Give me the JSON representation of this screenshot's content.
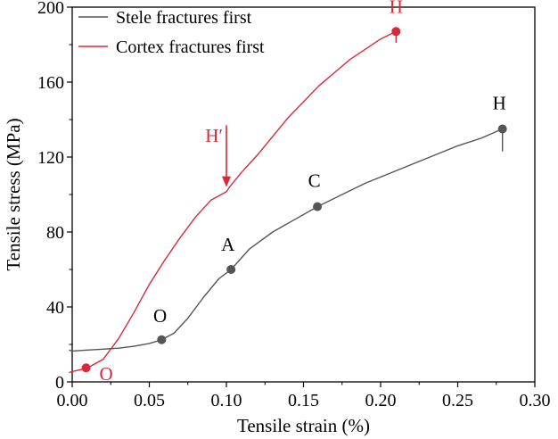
{
  "chart_data": {
    "type": "line",
    "xlabel": "Tensile strain (%)",
    "ylabel": "Tensile stress (MPa)",
    "xlim": [
      0.0,
      0.3
    ],
    "ylim": [
      0,
      200
    ],
    "xticks": [
      "0.00",
      "0.05",
      "0.10",
      "0.15",
      "0.20",
      "0.25",
      "0.30"
    ],
    "yticks": [
      "0",
      "40",
      "80",
      "120",
      "160",
      "200"
    ],
    "grid": false,
    "legend": "top-left",
    "series": [
      {
        "name": "Stele fractures first",
        "color": "#555555",
        "x": [
          -0.002,
          0.0,
          0.01,
          0.02,
          0.03,
          0.04,
          0.05,
          0.058,
          0.066,
          0.075,
          0.085,
          0.095,
          0.103,
          0.115,
          0.13,
          0.145,
          0.159,
          0.175,
          0.19,
          0.205,
          0.22,
          0.235,
          0.25,
          0.265,
          0.279,
          0.279
        ],
        "y": [
          17,
          16.5,
          17,
          17.5,
          18,
          19,
          20.5,
          22.5,
          26,
          34,
          45,
          55,
          60,
          71,
          80,
          87,
          93.5,
          100,
          106,
          111,
          116,
          121,
          126,
          130,
          135,
          123
        ]
      },
      {
        "name": "Cortex fractures first",
        "color": "#d8293b",
        "x": [
          -0.002,
          0.0,
          0.005,
          0.01,
          0.02,
          0.03,
          0.04,
          0.05,
          0.06,
          0.07,
          0.08,
          0.09,
          0.1,
          0.102,
          0.11,
          0.12,
          0.14,
          0.16,
          0.18,
          0.2,
          0.21,
          0.21
        ],
        "y": [
          5,
          5.5,
          6.5,
          7.5,
          12,
          23,
          37,
          52,
          65,
          77,
          88,
          97,
          101.5,
          104,
          112,
          121,
          141,
          158,
          172,
          183,
          187,
          181
        ]
      }
    ],
    "points": [
      {
        "label": "O",
        "x": 0.058,
        "y": 22.5,
        "color": "#555555",
        "text_color": "#000000",
        "lx": 0.057,
        "ly": 32,
        "anchor": "middle"
      },
      {
        "label": "A",
        "x": 0.103,
        "y": 60,
        "color": "#555555",
        "text_color": "#000000",
        "lx": 0.101,
        "ly": 70,
        "anchor": "middle"
      },
      {
        "label": "C",
        "x": 0.159,
        "y": 93.5,
        "color": "#555555",
        "text_color": "#000000",
        "lx": 0.157,
        "ly": 104,
        "anchor": "middle"
      },
      {
        "label": "H",
        "x": 0.279,
        "y": 135,
        "color": "#555555",
        "text_color": "#000000",
        "lx": 0.277,
        "ly": 145.5,
        "anchor": "middle"
      },
      {
        "label": "O",
        "x": 0.009,
        "y": 7.5,
        "color": "#d8293b",
        "text_color": "#d8293b",
        "lx": 0.022,
        "ly": 1,
        "anchor": "middle"
      },
      {
        "label": "H",
        "x": 0.21,
        "y": 187,
        "color": "#d8293b",
        "text_color": "#d8293b",
        "lx": 0.21,
        "ly": 197,
        "anchor": "middle"
      }
    ],
    "arrow_annotation": {
      "label": "H′",
      "color": "#d8293b",
      "x": 0.1,
      "y_from": 137,
      "y_to": 104,
      "lx": 0.092,
      "ly": 128
    }
  }
}
